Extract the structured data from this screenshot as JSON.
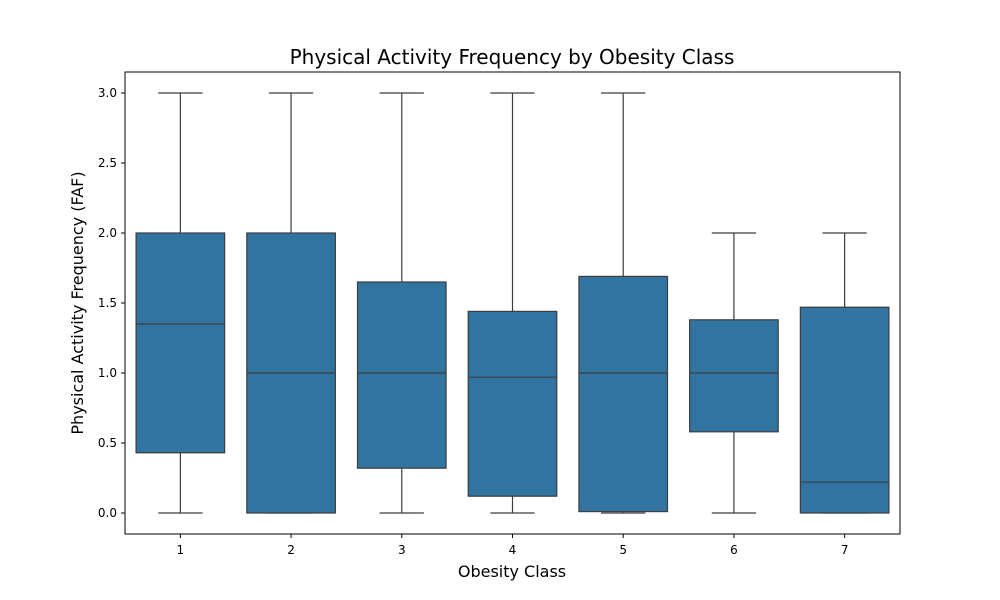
{
  "chart_data": {
    "type": "box",
    "title": "Physical Activity Frequency by Obesity Class",
    "xlabel": "Obesity Class",
    "ylabel": "Physical Activity Frequency (FAF)",
    "categories": [
      "1",
      "2",
      "3",
      "4",
      "5",
      "6",
      "7"
    ],
    "ylim": [
      -0.15,
      3.15
    ],
    "yticks": [
      "0.0",
      "0.5",
      "1.0",
      "1.5",
      "2.0",
      "2.5",
      "3.0"
    ],
    "grid": false,
    "box_color": "#3274a1",
    "line_color": "#3d3d3d",
    "series": [
      {
        "category": "1",
        "whisker_low": 0.0,
        "q1": 0.43,
        "median": 1.35,
        "q3": 2.0,
        "whisker_high": 3.0
      },
      {
        "category": "2",
        "whisker_low": 0.0,
        "q1": 0.0,
        "median": 1.0,
        "q3": 2.0,
        "whisker_high": 3.0
      },
      {
        "category": "3",
        "whisker_low": 0.0,
        "q1": 0.32,
        "median": 1.0,
        "q3": 1.65,
        "whisker_high": 3.0
      },
      {
        "category": "4",
        "whisker_low": 0.0,
        "q1": 0.12,
        "median": 0.97,
        "q3": 1.44,
        "whisker_high": 3.0
      },
      {
        "category": "5",
        "whisker_low": 0.0,
        "q1": 0.01,
        "median": 1.0,
        "q3": 1.69,
        "whisker_high": 3.0
      },
      {
        "category": "6",
        "whisker_low": 0.0,
        "q1": 0.58,
        "median": 1.0,
        "q3": 1.38,
        "whisker_high": 2.0
      },
      {
        "category": "7",
        "whisker_low": 0.0,
        "q1": 0.0,
        "median": 0.22,
        "q3": 1.47,
        "whisker_high": 2.0
      }
    ]
  }
}
